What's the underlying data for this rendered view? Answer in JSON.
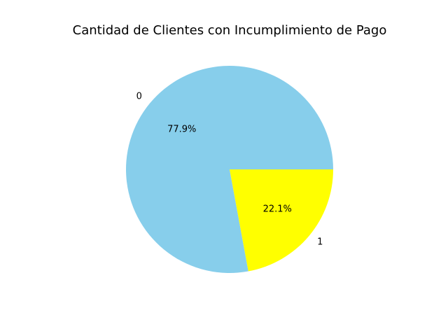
{
  "chart_data": {
    "type": "pie",
    "title": "Cantidad de Clientes con Incumplimiento de Pago",
    "categories": [
      "0",
      "1"
    ],
    "values": [
      77.9,
      22.1
    ],
    "percent_labels": [
      "77.9%",
      "22.1%"
    ],
    "colors": [
      "#87ceeb",
      "#ffff00"
    ],
    "start_angle_deg": 0,
    "direction": "counterclockwise",
    "legend": "none"
  }
}
